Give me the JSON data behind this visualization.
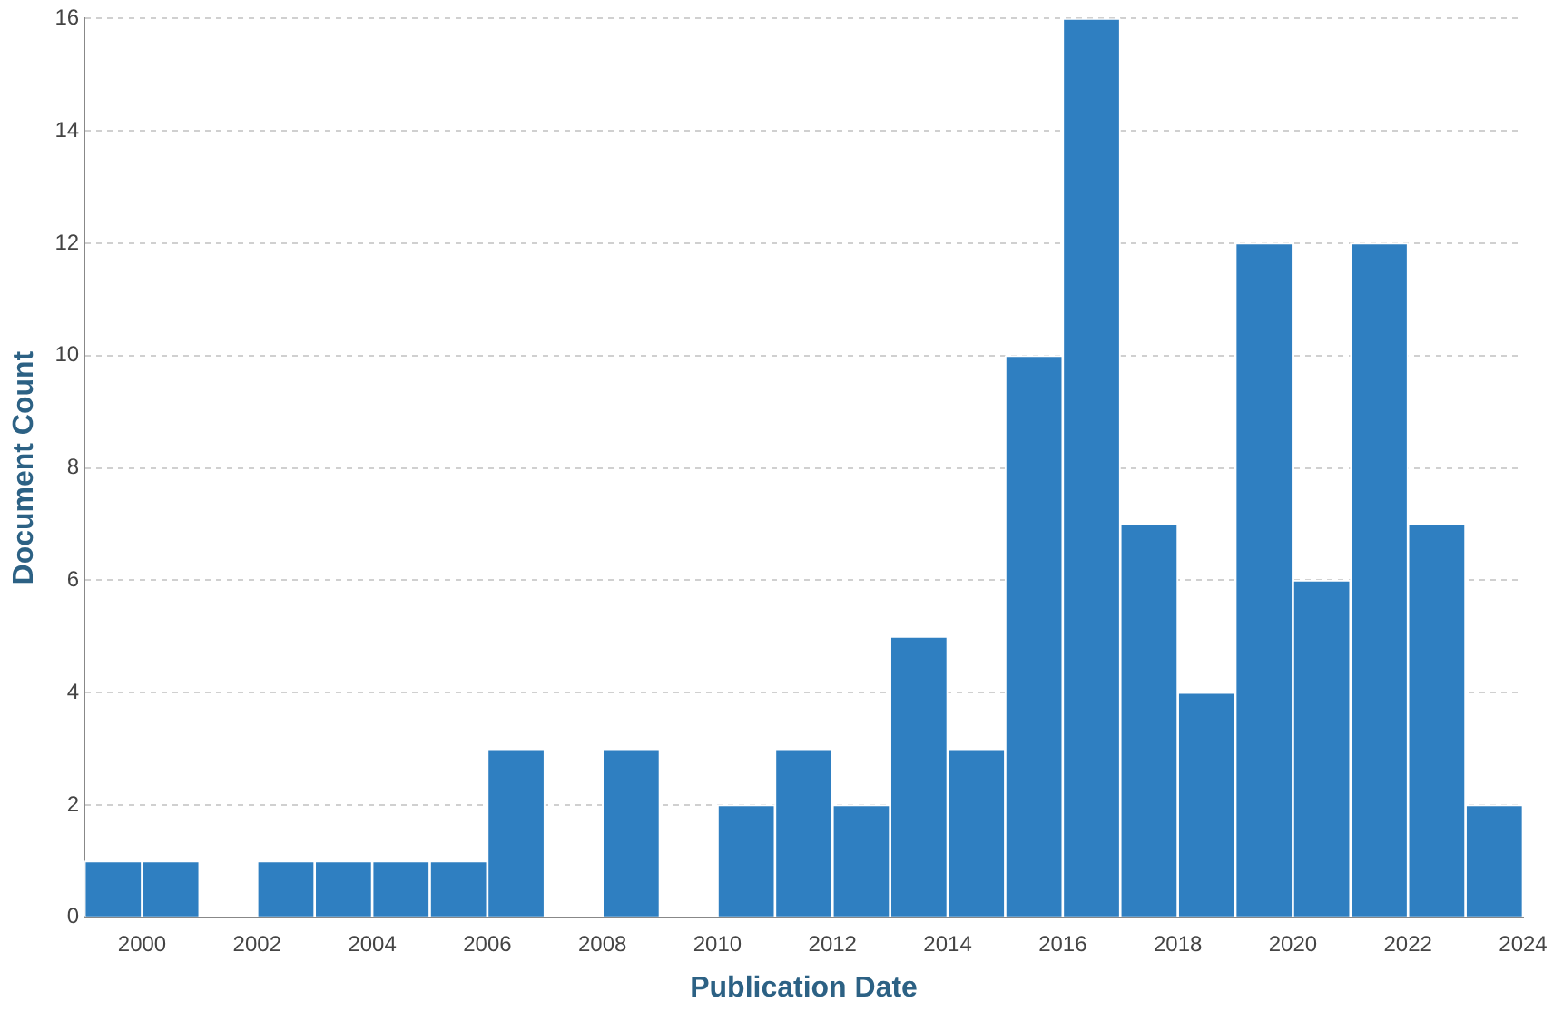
{
  "chart_data": {
    "type": "histogram",
    "xlabel": "Publication Date",
    "ylabel": "Document Count",
    "bins": [
      1999,
      2000,
      2001,
      2002,
      2003,
      2004,
      2005,
      2006,
      2007,
      2008,
      2009,
      2010,
      2011,
      2012,
      2013,
      2014,
      2015,
      2016,
      2017,
      2018,
      2019,
      2020,
      2021,
      2022,
      2023,
      2024
    ],
    "values": [
      1,
      1,
      0,
      1,
      1,
      1,
      1,
      3,
      0,
      3,
      0,
      2,
      3,
      2,
      5,
      3,
      10,
      16,
      7,
      4,
      12,
      6,
      12,
      7,
      2
    ],
    "color": "#2f7fc1",
    "xlim": [
      1999,
      2024
    ],
    "xticks": [
      2000,
      2002,
      2004,
      2006,
      2008,
      2010,
      2012,
      2014,
      2016,
      2018,
      2020,
      2022,
      2024
    ],
    "ylim": [
      0,
      16
    ],
    "yticks": [
      0,
      2,
      4,
      6,
      8,
      10,
      12,
      14,
      16
    ],
    "grid": "y",
    "legend": false
  }
}
